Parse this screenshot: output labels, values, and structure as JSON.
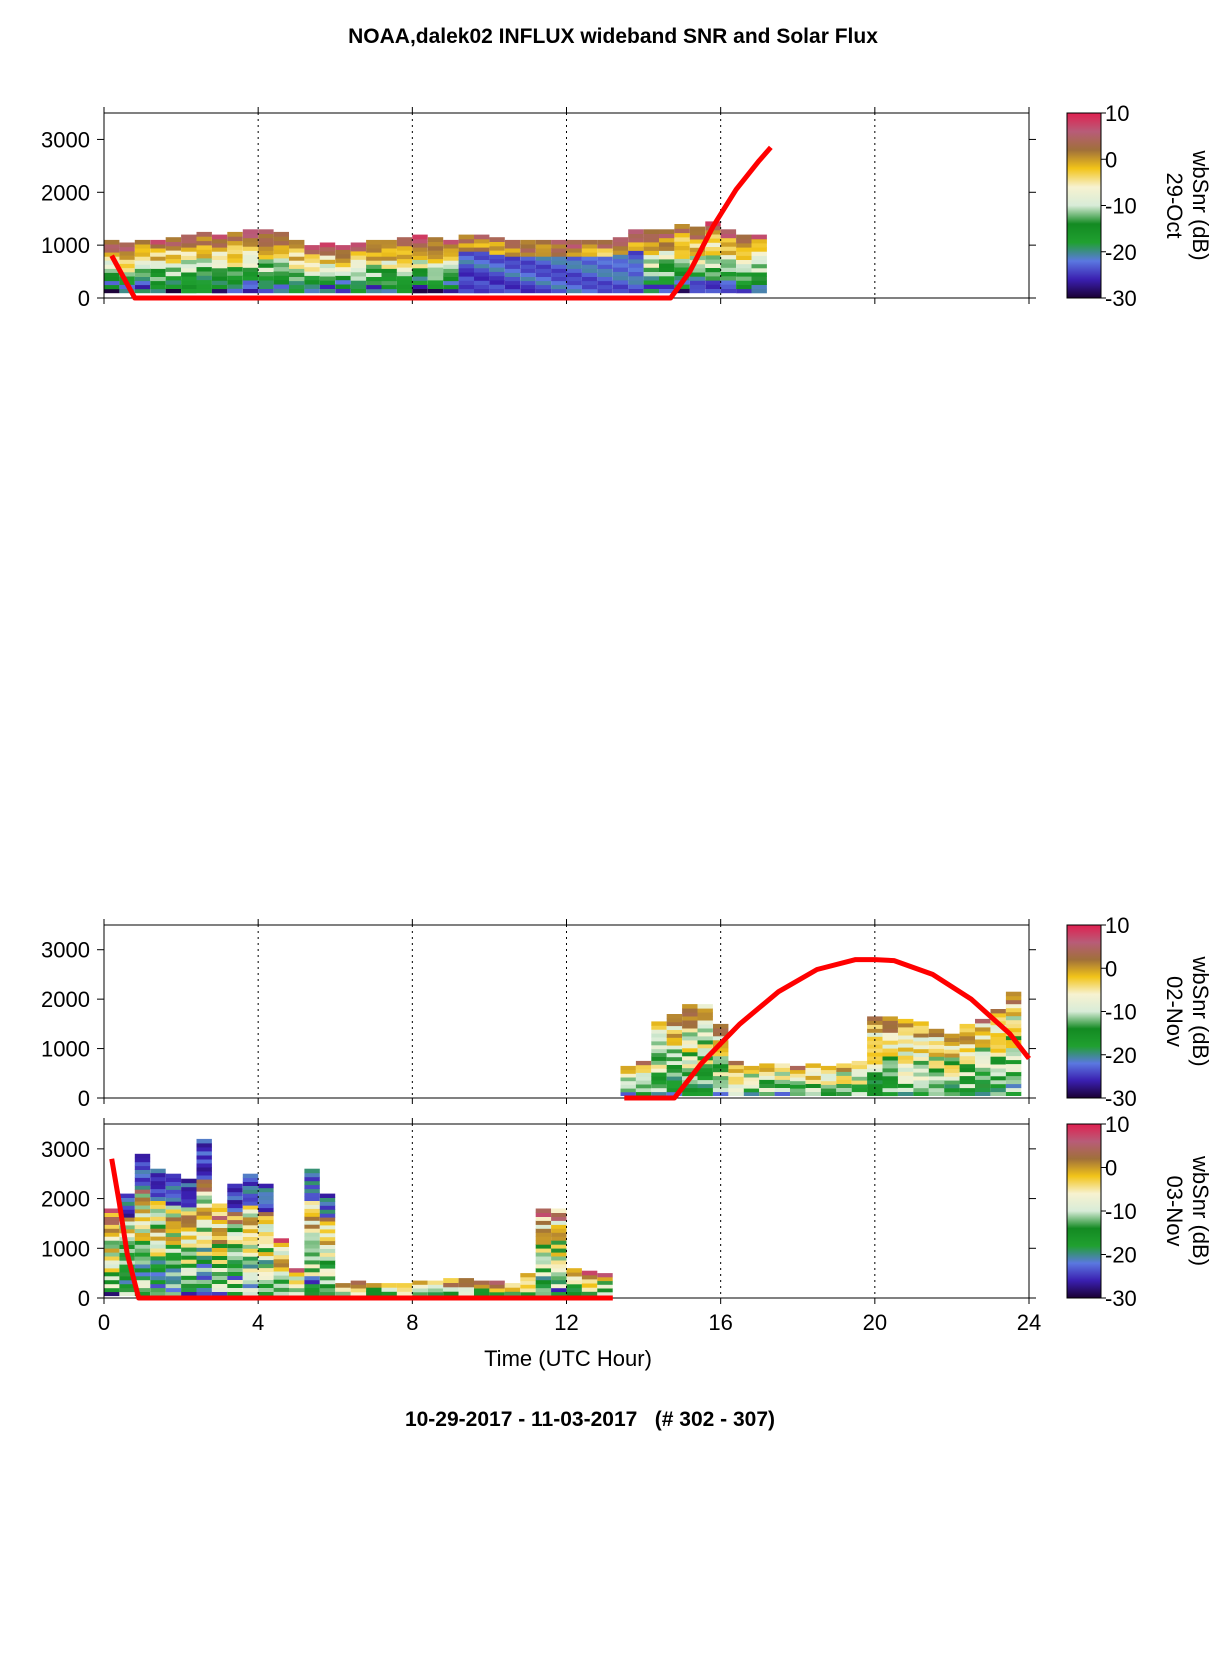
{
  "figure": {
    "title": "NOAA,dalek02 INFLUX wideband SNR and Solar Flux",
    "footer": "10-29-2017 - 11-03-2017   (# 302 - 307)",
    "xlabel": "Time (UTC Hour)"
  },
  "colorbar": {
    "label": "wbSnr (dB)",
    "ticks": [
      "10",
      "0",
      "-10",
      "-20",
      "-30"
    ],
    "stops": [
      "#1a0033",
      "#3a1fb0",
      "#5b78e0",
      "#20a030",
      "#138a22",
      "#d8ecd8",
      "#f7f2d0",
      "#f2c419",
      "#a0703a",
      "#b85c78",
      "#e02050"
    ]
  },
  "colors": {
    "solar_flux_line": "#ff0000",
    "grid": "#000000"
  },
  "chart_data": [
    {
      "type": "heatmap",
      "panel": "29-Oct",
      "xlim": [
        0,
        24
      ],
      "ylim": [
        0,
        3500
      ],
      "xticks": [
        "0",
        "4",
        "8",
        "12",
        "16",
        "20",
        "24"
      ],
      "yticks": [
        "0",
        "1000",
        "2000",
        "3000"
      ],
      "clim": [
        -30,
        10
      ],
      "grid_x": "dotted at 4, 8, 12, 16, 20",
      "heatmap_columns": [
        {
          "x": 0.2,
          "top": 1100
        },
        {
          "x": 0.6,
          "top": 1050
        },
        {
          "x": 1.0,
          "top": 1100
        },
        {
          "x": 1.4,
          "top": 1100
        },
        {
          "x": 1.8,
          "top": 1150
        },
        {
          "x": 2.2,
          "top": 1200
        },
        {
          "x": 2.6,
          "top": 1250
        },
        {
          "x": 3.0,
          "top": 1200
        },
        {
          "x": 3.4,
          "top": 1250
        },
        {
          "x": 3.8,
          "top": 1300
        },
        {
          "x": 4.2,
          "top": 1300
        },
        {
          "x": 4.6,
          "top": 1250
        },
        {
          "x": 5.0,
          "top": 1100
        },
        {
          "x": 5.4,
          "top": 1000
        },
        {
          "x": 5.8,
          "top": 1050
        },
        {
          "x": 6.2,
          "top": 1000
        },
        {
          "x": 6.6,
          "top": 1050
        },
        {
          "x": 7.0,
          "top": 1100
        },
        {
          "x": 7.4,
          "top": 1100
        },
        {
          "x": 7.8,
          "top": 1150
        },
        {
          "x": 8.2,
          "top": 1200
        },
        {
          "x": 8.6,
          "top": 1150
        },
        {
          "x": 9.0,
          "top": 1100
        },
        {
          "x": 9.4,
          "top": 1200
        },
        {
          "x": 9.8,
          "top": 1200
        },
        {
          "x": 10.2,
          "top": 1150
        },
        {
          "x": 10.6,
          "top": 1100
        },
        {
          "x": 11.0,
          "top": 1100
        },
        {
          "x": 11.4,
          "top": 1100
        },
        {
          "x": 11.8,
          "top": 1100
        },
        {
          "x": 12.2,
          "top": 1100
        },
        {
          "x": 12.6,
          "top": 1100
        },
        {
          "x": 13.0,
          "top": 1100
        },
        {
          "x": 13.4,
          "top": 1150
        },
        {
          "x": 13.8,
          "top": 1300
        },
        {
          "x": 14.2,
          "top": 1300
        },
        {
          "x": 14.6,
          "top": 1300
        },
        {
          "x": 15.0,
          "top": 1400
        },
        {
          "x": 15.4,
          "top": 1350
        },
        {
          "x": 15.8,
          "top": 1450
        },
        {
          "x": 16.2,
          "top": 1300
        },
        {
          "x": 16.6,
          "top": 1200
        },
        {
          "x": 17.0,
          "top": 1200
        }
      ],
      "series": [
        {
          "name": "Solar Flux",
          "x": [
            0.2,
            0.5,
            0.8,
            14.7,
            15.2,
            15.8,
            16.4,
            17.0,
            17.3
          ],
          "y": [
            800,
            400,
            0,
            0,
            500,
            1350,
            2050,
            2600,
            2850
          ]
        }
      ]
    },
    {
      "type": "heatmap",
      "panel": "02-Nov",
      "xlim": [
        0,
        24
      ],
      "ylim": [
        0,
        3500
      ],
      "xticks": [
        "0",
        "4",
        "8",
        "12",
        "16",
        "20",
        "24"
      ],
      "yticks": [
        "0",
        "1000",
        "2000",
        "3000"
      ],
      "clim": [
        -30,
        10
      ],
      "grid_x": "dotted at 4, 8, 12, 16, 20",
      "heatmap_columns": [
        {
          "x": 13.6,
          "top": 650
        },
        {
          "x": 14.0,
          "top": 750
        },
        {
          "x": 14.4,
          "top": 1550
        },
        {
          "x": 14.8,
          "top": 1700
        },
        {
          "x": 15.2,
          "top": 1900
        },
        {
          "x": 15.6,
          "top": 1900
        },
        {
          "x": 16.0,
          "top": 1500
        },
        {
          "x": 16.4,
          "top": 750
        },
        {
          "x": 16.8,
          "top": 650
        },
        {
          "x": 17.2,
          "top": 700
        },
        {
          "x": 17.6,
          "top": 700
        },
        {
          "x": 18.0,
          "top": 650
        },
        {
          "x": 18.4,
          "top": 700
        },
        {
          "x": 18.8,
          "top": 650
        },
        {
          "x": 19.2,
          "top": 700
        },
        {
          "x": 19.6,
          "top": 750
        },
        {
          "x": 20.0,
          "top": 1650
        },
        {
          "x": 20.4,
          "top": 1650
        },
        {
          "x": 20.8,
          "top": 1600
        },
        {
          "x": 21.2,
          "top": 1550
        },
        {
          "x": 21.6,
          "top": 1400
        },
        {
          "x": 22.0,
          "top": 1300
        },
        {
          "x": 22.4,
          "top": 1500
        },
        {
          "x": 22.8,
          "top": 1600
        },
        {
          "x": 23.2,
          "top": 1800
        },
        {
          "x": 23.6,
          "top": 2150
        }
      ],
      "series": [
        {
          "name": "Solar Flux",
          "x": [
            13.5,
            14.8,
            15.5,
            16.5,
            17.5,
            18.5,
            19.5,
            20.0,
            20.5,
            21.5,
            22.5,
            23.5,
            24.0
          ],
          "y": [
            0,
            0,
            700,
            1500,
            2150,
            2600,
            2800,
            2800,
            2780,
            2500,
            2000,
            1300,
            800
          ]
        }
      ]
    },
    {
      "type": "heatmap",
      "panel": "03-Nov",
      "xlim": [
        0,
        24
      ],
      "ylim": [
        0,
        3500
      ],
      "xticks": [
        "0",
        "4",
        "8",
        "12",
        "16",
        "20",
        "24"
      ],
      "yticks": [
        "0",
        "1000",
        "2000",
        "3000"
      ],
      "xlabel": "Time (UTC Hour)",
      "clim": [
        -30,
        10
      ],
      "grid_x": "dotted at 4, 8, 12, 16, 20",
      "heatmap_columns": [
        {
          "x": 0.2,
          "top": 1800
        },
        {
          "x": 0.6,
          "top": 2100
        },
        {
          "x": 1.0,
          "top": 2900
        },
        {
          "x": 1.4,
          "top": 2600
        },
        {
          "x": 1.8,
          "top": 2500
        },
        {
          "x": 2.2,
          "top": 2400
        },
        {
          "x": 2.6,
          "top": 3200
        },
        {
          "x": 3.0,
          "top": 1900
        },
        {
          "x": 3.4,
          "top": 2300
        },
        {
          "x": 3.8,
          "top": 2500
        },
        {
          "x": 4.2,
          "top": 2300
        },
        {
          "x": 4.6,
          "top": 1200
        },
        {
          "x": 5.0,
          "top": 600
        },
        {
          "x": 5.4,
          "top": 2600
        },
        {
          "x": 5.8,
          "top": 2100
        },
        {
          "x": 6.2,
          "top": 300
        },
        {
          "x": 6.6,
          "top": 350
        },
        {
          "x": 7.0,
          "top": 300
        },
        {
          "x": 7.4,
          "top": 300
        },
        {
          "x": 7.8,
          "top": 300
        },
        {
          "x": 8.2,
          "top": 350
        },
        {
          "x": 8.6,
          "top": 350
        },
        {
          "x": 9.0,
          "top": 400
        },
        {
          "x": 9.4,
          "top": 400
        },
        {
          "x": 9.8,
          "top": 350
        },
        {
          "x": 10.2,
          "top": 350
        },
        {
          "x": 10.6,
          "top": 300
        },
        {
          "x": 11.0,
          "top": 500
        },
        {
          "x": 11.4,
          "top": 1800
        },
        {
          "x": 11.8,
          "top": 1800
        },
        {
          "x": 12.2,
          "top": 600
        },
        {
          "x": 12.6,
          "top": 550
        },
        {
          "x": 13.0,
          "top": 500
        }
      ],
      "series": [
        {
          "name": "Solar Flux",
          "x": [
            0.2,
            0.4,
            0.6,
            0.8,
            0.9,
            13.2
          ],
          "y": [
            2800,
            1900,
            900,
            300,
            0,
            0
          ]
        }
      ]
    }
  ]
}
